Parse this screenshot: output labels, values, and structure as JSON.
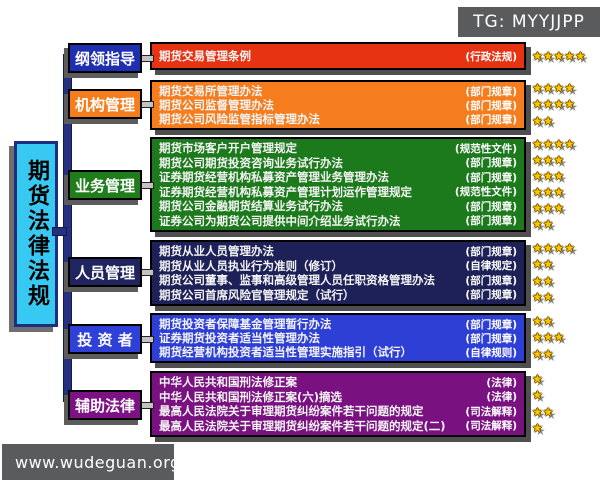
{
  "watermark_tag": "TG: MYYJJPP",
  "site_watermark": "www.wudeguan.org",
  "root_title": "期货法律法规",
  "star_color": "#fdc400",
  "sections": [
    {
      "label": "纲领指导",
      "label_color": "#1f2fb2",
      "box_color": "#e73311",
      "laws": [
        {
          "name": "期货交易管理条例",
          "type": "(行政法规)",
          "stars": 5
        }
      ]
    },
    {
      "label": "机构管理",
      "label_color": "#f57d1d",
      "box_color": "#f57d1d",
      "laws": [
        {
          "name": "期货交易所管理办法",
          "type": "(部门规章)",
          "stars": 4
        },
        {
          "name": "期货公司监督管理办法",
          "type": "(部门规章)",
          "stars": 4
        },
        {
          "name": "期货公司风险监管指标管理办法",
          "type": "(部门规章)",
          "stars": 2
        }
      ]
    },
    {
      "label": "业务管理",
      "label_color": "#1f7e1b",
      "box_color": "#1c7a1c",
      "laws": [
        {
          "name": "期货市场客户开户管理规定",
          "type": "(规范性文件)",
          "stars": 4
        },
        {
          "name": "期货公司期货投资咨询业务试行办法",
          "type": "(部门规章)",
          "stars": 3
        },
        {
          "name": "证券期货经营机构私募资产管理业务管理办法",
          "type": "(部门规章)",
          "stars": 3
        },
        {
          "name": "证券期货经营机构私募资产管理计划运作管理规定",
          "type": "(规范性文件)",
          "stars": 3
        },
        {
          "name": "期货公司金融期货结算业务试行办法",
          "type": "(部门规章)",
          "stars": 3
        },
        {
          "name": "证券公司为期货公司提供中间介绍业务试行办法",
          "type": "(部门规章)",
          "stars": 2
        }
      ]
    },
    {
      "label": "人员管理",
      "label_color": "#21255f",
      "box_color": "#1d2158",
      "laws": [
        {
          "name": "期货从业人员管理办法",
          "type": "(部门规章)",
          "stars": 4
        },
        {
          "name": "期货从业人员执业行为准则（修订）",
          "type": "(自律规定)",
          "stars": 2
        },
        {
          "name": "期货公司董事、监事和高级管理人员任职资格管理办法",
          "type": "(部门规章)",
          "stars": 2
        },
        {
          "name": "期货公司首席风险官管理规定（试行）",
          "type": "(部门规章)",
          "stars": 2
        }
      ]
    },
    {
      "label": "投 资 者",
      "label_color": "#2e40d8",
      "box_color": "#2e3fd6",
      "laws": [
        {
          "name": "期货投资者保障基金管理暂行办法",
          "type": "(部门规章)",
          "stars": 2
        },
        {
          "name": "证券期货投资者适当性管理办法",
          "type": "(部门规章)",
          "stars": 3
        },
        {
          "name": "期货经营机构投资者适当性管理实施指引（试行）",
          "type": "(自律规则)",
          "stars": 2
        }
      ]
    },
    {
      "label": "辅助法律",
      "label_color": "#7d1284",
      "box_color": "#7a1180",
      "laws": [
        {
          "name": "中华人民共和国刑法修正案",
          "type": "(法律)",
          "stars": 1
        },
        {
          "name": "中华人民共和国刑法修正案(六)摘选",
          "type": "(法律)",
          "stars": 1
        },
        {
          "name": "最高人民法院关于审理期货纠纷案件若干问题的规定",
          "type": "(司法解释)",
          "stars": 2
        },
        {
          "name": "最高人民法院关于审理期货纠纷案件若干问题的规定(二)",
          "type": "(司法解释)",
          "stars": 1
        }
      ]
    }
  ]
}
